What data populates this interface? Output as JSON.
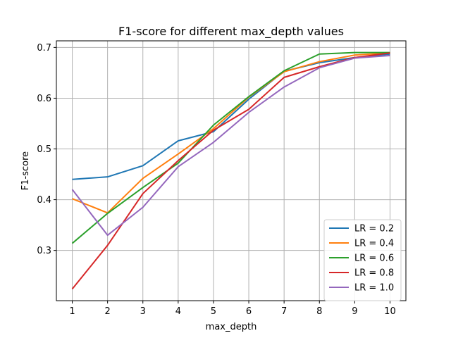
{
  "chart_data": {
    "type": "line",
    "title": "F1-score for different max_depth values",
    "xlabel": "max_depth",
    "ylabel": "F1-score",
    "x": [
      1,
      2,
      3,
      4,
      5,
      6,
      7,
      8,
      9,
      10
    ],
    "xticks": [
      "1",
      "2",
      "3",
      "4",
      "5",
      "6",
      "7",
      "8",
      "9",
      "10"
    ],
    "yticks": [
      0.3,
      0.4,
      0.5,
      0.6,
      0.7
    ],
    "ytick_labels": [
      "0.3",
      "0.4",
      "0.5",
      "0.6",
      "0.7"
    ],
    "xlim": [
      0.55,
      10.45
    ],
    "ylim": [
      0.201,
      0.713
    ],
    "grid": true,
    "legend_position": "lower-right",
    "series": [
      {
        "name": "LR = 0.2",
        "color": "#1f77b4",
        "values": [
          0.44,
          0.445,
          0.467,
          0.516,
          0.534,
          0.598,
          0.653,
          0.67,
          0.68,
          0.687
        ]
      },
      {
        "name": "LR = 0.4",
        "color": "#ff7f0e",
        "values": [
          0.402,
          0.374,
          0.442,
          0.49,
          0.54,
          0.602,
          0.652,
          0.672,
          0.685,
          0.689
        ]
      },
      {
        "name": "LR = 0.6",
        "color": "#2ca02c",
        "values": [
          0.314,
          0.373,
          0.424,
          0.472,
          0.547,
          0.603,
          0.654,
          0.687,
          0.69,
          0.69
        ]
      },
      {
        "name": "LR = 0.8",
        "color": "#d62728",
        "values": [
          0.224,
          0.31,
          0.412,
          0.477,
          0.537,
          0.578,
          0.641,
          0.662,
          0.68,
          0.689
        ]
      },
      {
        "name": "LR = 1.0",
        "color": "#9467bd",
        "values": [
          0.42,
          0.33,
          0.385,
          0.465,
          0.513,
          0.572,
          0.622,
          0.66,
          0.679,
          0.684
        ]
      }
    ]
  }
}
